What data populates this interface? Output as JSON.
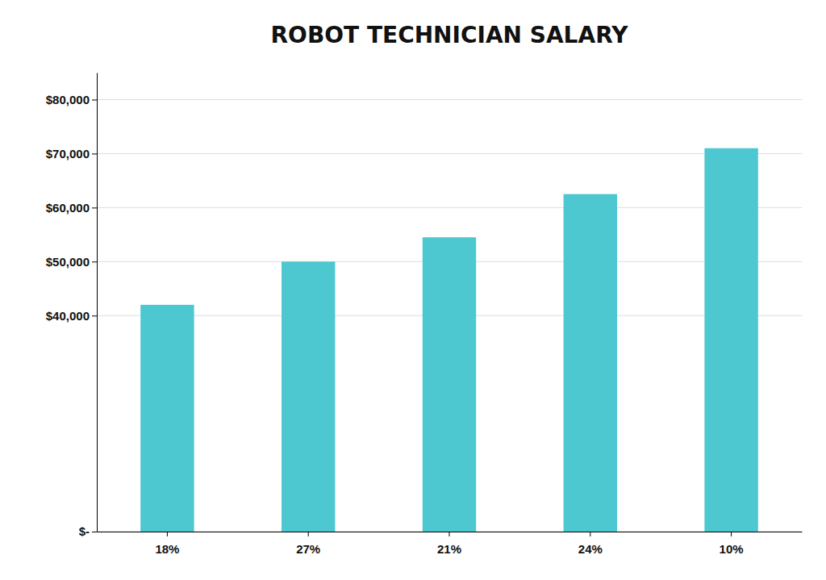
{
  "chart_data": {
    "type": "bar",
    "title": "ROBOT TECHNICIAN SALARY",
    "categories": [
      "18%",
      "27%",
      "21%",
      "24%",
      "10%"
    ],
    "values": [
      42000,
      50000,
      54500,
      62500,
      71000
    ],
    "color": "#4DC8D0",
    "ylim": [
      0,
      85000
    ],
    "yticks": [
      {
        "value": 0,
        "label": "$-"
      },
      {
        "value": 40000,
        "label": "$40,000"
      },
      {
        "value": 50000,
        "label": "$50,000"
      },
      {
        "value": 60000,
        "label": "$60,000"
      },
      {
        "value": 70000,
        "label": "$70,000"
      },
      {
        "value": 80000,
        "label": "$80,000"
      }
    ],
    "grid": true
  }
}
